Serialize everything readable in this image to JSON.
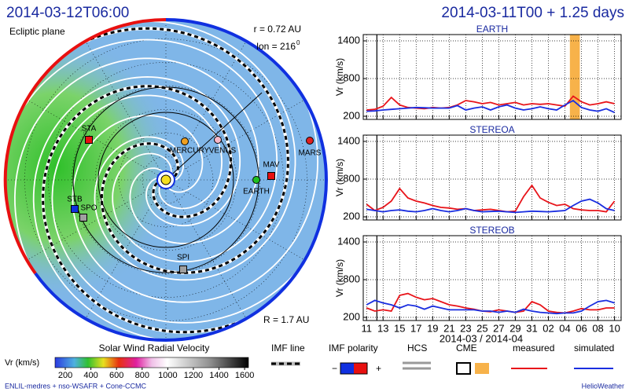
{
  "header": {
    "left_title": "2014-03-12T06:00",
    "right_title": "2014-03-11T00 + 1.25 days"
  },
  "polar": {
    "plane": "Ecliptic plane",
    "radius_label": "r = 0.72 AU",
    "lon_label": "lon = 216",
    "lon_unit": "0",
    "range_label": "R = 1.7 AU",
    "objects": [
      {
        "label": "STA"
      },
      {
        "label": "MERCURY"
      },
      {
        "label": "VENUS"
      },
      {
        "label": "MARS"
      },
      {
        "label": "MAV"
      },
      {
        "label": "EARTH"
      },
      {
        "label": "STB"
      },
      {
        "label": "SPO"
      },
      {
        "label": "SPI"
      }
    ]
  },
  "chart_data": [
    {
      "type": "line",
      "title": "EARTH",
      "y_label": "Vr (km/s)",
      "x": [
        0,
        1,
        2,
        3,
        4,
        5,
        6,
        7,
        8,
        9,
        10,
        11,
        12,
        13,
        14,
        15,
        16,
        17,
        18,
        19,
        20,
        21,
        22,
        23,
        24,
        25,
        26,
        27,
        28,
        29,
        30
      ],
      "xlim": [
        -0.4,
        30.8
      ],
      "xticks": [
        0,
        2,
        4,
        6,
        8,
        10,
        12,
        14,
        16,
        18,
        20,
        22,
        24,
        26,
        28,
        30
      ],
      "ylim": [
        150,
        1500
      ],
      "yticks": [
        200,
        800,
        1400
      ],
      "grid": true,
      "now": 1.25,
      "cme_span": [
        24.6,
        25.8
      ],
      "series": [
        {
          "color": "#e8141a",
          "values": [
            300,
            310,
            360,
            500,
            380,
            340,
            330,
            320,
            340,
            330,
            340,
            380,
            450,
            430,
            400,
            420,
            380,
            400,
            420,
            380,
            400,
            390,
            400,
            380,
            360,
            520,
            430,
            380,
            400,
            430,
            400
          ]
        },
        {
          "color": "#1a2ee0",
          "values": [
            280,
            285,
            300,
            310,
            320,
            330,
            340,
            335,
            330,
            330,
            330,
            370,
            300,
            330,
            350,
            300,
            350,
            380,
            330,
            300,
            320,
            350,
            320,
            300,
            380,
            450,
            340,
            300,
            280,
            320,
            260
          ]
        }
      ]
    },
    {
      "type": "line",
      "title": "STEREOA",
      "y_label": "Vr (km/s)",
      "x": [
        0,
        1,
        2,
        3,
        4,
        5,
        6,
        7,
        8,
        9,
        10,
        11,
        12,
        13,
        14,
        15,
        16,
        17,
        18,
        19,
        20,
        21,
        22,
        23,
        24,
        25,
        26,
        27,
        28,
        29,
        30
      ],
      "xlim": [
        -0.4,
        30.8
      ],
      "xticks": [
        0,
        2,
        4,
        6,
        8,
        10,
        12,
        14,
        16,
        18,
        20,
        22,
        24,
        26,
        28,
        30
      ],
      "ylim": [
        150,
        1500
      ],
      "yticks": [
        200,
        800,
        1400
      ],
      "grid": true,
      "now": 1.25,
      "series": [
        {
          "color": "#e8141a",
          "values": [
            400,
            300,
            350,
            450,
            650,
            500,
            450,
            420,
            380,
            350,
            340,
            320,
            330,
            300,
            310,
            320,
            300,
            280,
            290,
            520,
            700,
            500,
            430,
            380,
            400,
            330,
            310,
            300,
            300,
            280,
            450
          ]
        },
        {
          "color": "#1a2ee0",
          "values": [
            320,
            300,
            280,
            300,
            310,
            290,
            280,
            300,
            330,
            300,
            280,
            300,
            330,
            300,
            280,
            285,
            290,
            280,
            270,
            280,
            290,
            285,
            280,
            290,
            300,
            380,
            450,
            480,
            420,
            330,
            300
          ]
        }
      ]
    },
    {
      "type": "line",
      "title": "STEREOB",
      "y_label": "Vr (km/s)",
      "x_label": "2014-03 / 2014-04",
      "x": [
        0,
        1,
        2,
        3,
        4,
        5,
        6,
        7,
        8,
        9,
        10,
        11,
        12,
        13,
        14,
        15,
        16,
        17,
        18,
        19,
        20,
        21,
        22,
        23,
        24,
        25,
        26,
        27,
        28,
        29,
        30
      ],
      "xlim": [
        -0.4,
        30.8
      ],
      "xticks": [
        {
          "value": 0,
          "label": "11"
        },
        {
          "value": 2,
          "label": "13"
        },
        {
          "value": 4,
          "label": "15"
        },
        {
          "value": 6,
          "label": "17"
        },
        {
          "value": 8,
          "label": "19"
        },
        {
          "value": 10,
          "label": "21"
        },
        {
          "value": 12,
          "label": "23"
        },
        {
          "value": 14,
          "label": "25"
        },
        {
          "value": 16,
          "label": "27"
        },
        {
          "value": 18,
          "label": "29"
        },
        {
          "value": 20,
          "label": "31"
        },
        {
          "value": 22,
          "label": "02"
        },
        {
          "value": 24,
          "label": "04"
        },
        {
          "value": 26,
          "label": "06"
        },
        {
          "value": 28,
          "label": "08"
        },
        {
          "value": 30,
          "label": "10"
        }
      ],
      "ylim": [
        150,
        1500
      ],
      "yticks": [
        200,
        800,
        1400
      ],
      "grid": true,
      "now": 1.25,
      "series": [
        {
          "color": "#e8141a",
          "values": [
            350,
            300,
            320,
            300,
            550,
            580,
            520,
            480,
            500,
            450,
            400,
            380,
            350,
            330,
            300,
            290,
            320,
            300,
            280,
            300,
            450,
            400,
            300,
            280,
            270,
            300,
            340,
            320,
            320,
            350,
            350
          ]
        },
        {
          "color": "#1a2ee0",
          "values": [
            400,
            470,
            430,
            400,
            350,
            400,
            380,
            330,
            380,
            350,
            320,
            320,
            320,
            320,
            300,
            300,
            280,
            300,
            280,
            330,
            300,
            280,
            270,
            260,
            270,
            270,
            300,
            380,
            450,
            470,
            430
          ]
        }
      ]
    }
  ],
  "colorbar": {
    "title": "Solar Wind Radial Velocity",
    "label": "Vr (km/s)",
    "lim": [
      120,
      1630
    ],
    "ticks": [
      200,
      400,
      600,
      800,
      1000,
      1200,
      1400,
      1600
    ]
  },
  "legend": {
    "imf_line": "IMF line",
    "imf_polarity": "IMF polarity",
    "minus": "−",
    "plus": "+",
    "hcs": "HCS",
    "cme": "CME",
    "measured": "measured",
    "simulated": "simulated"
  },
  "footer": {
    "left": "ENLIL-medres + nso-WSAFR + Cone-CCMC",
    "right": "HelioWeather"
  }
}
